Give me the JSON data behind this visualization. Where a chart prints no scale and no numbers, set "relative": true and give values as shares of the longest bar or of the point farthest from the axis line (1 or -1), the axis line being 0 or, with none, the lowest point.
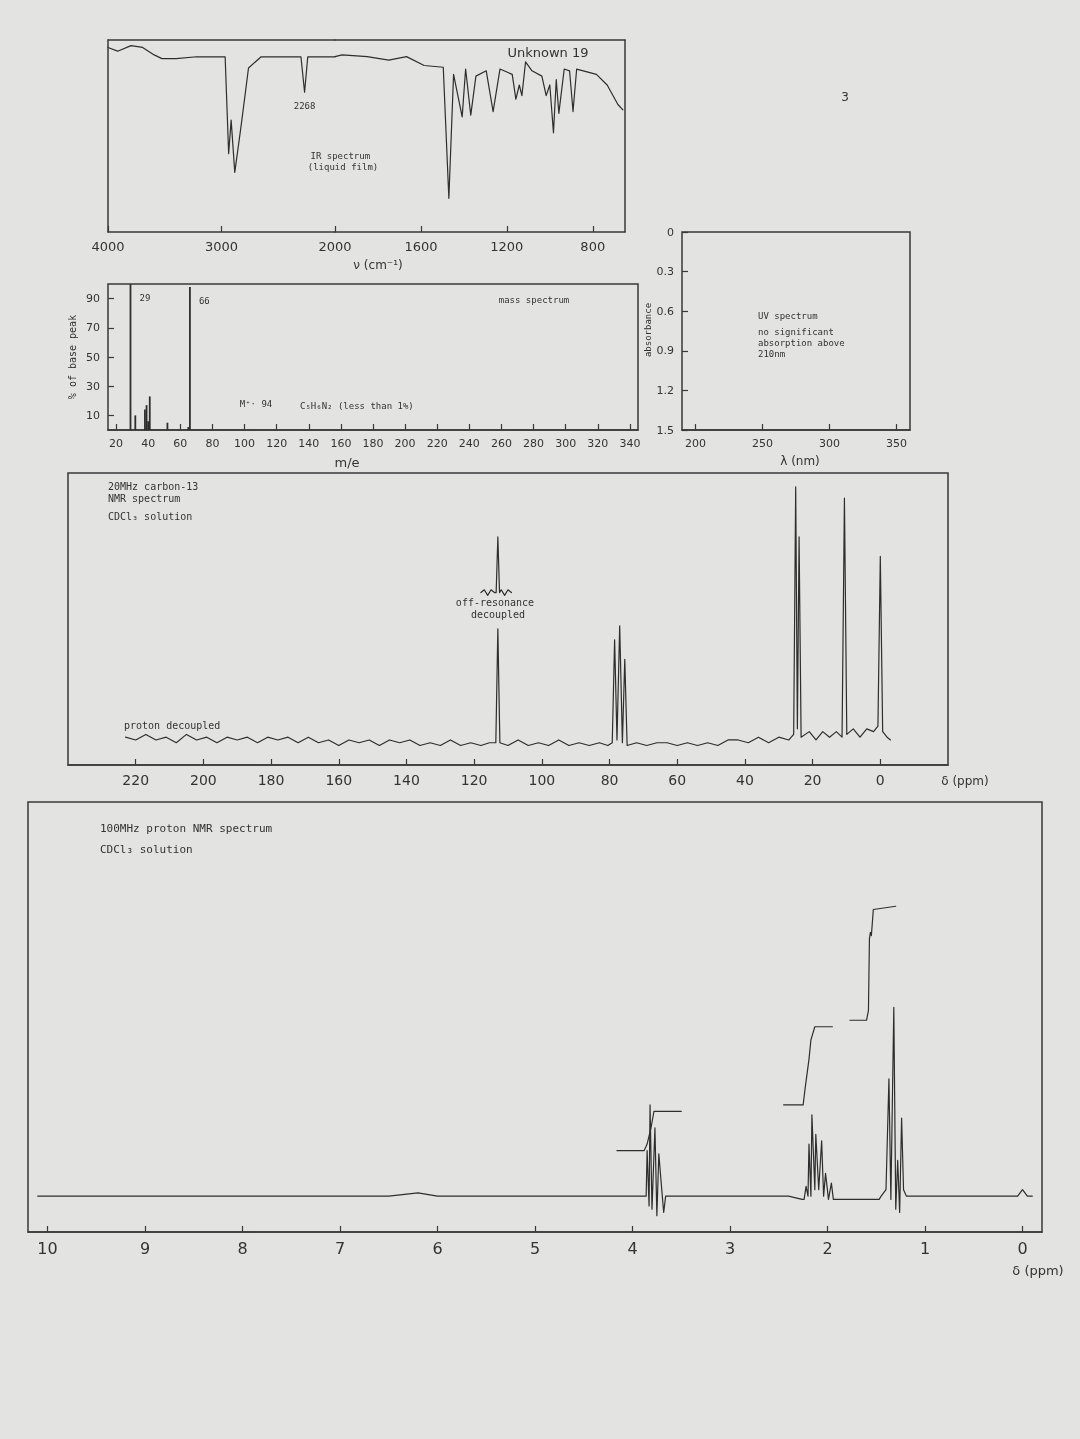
{
  "chart_data": [
    {
      "type": "line",
      "relative": true,
      "color": "#2e2e2e",
      "x": [
        4000,
        3915,
        3797,
        3695,
        3593,
        3525,
        3400,
        3220,
        2968,
        2937,
        2915,
        2883,
        2825,
        2762,
        2651,
        2500,
        2300,
        2268,
        2240,
        2100,
        2000
      ],
      "values": [
        0.99,
        0.97,
        1.0,
        0.99,
        0.95,
        0.93,
        0.93,
        0.94,
        0.94,
        0.42,
        0.6,
        0.32,
        0.58,
        0.88,
        0.94,
        0.94,
        0.94,
        0.75,
        0.94,
        0.94,
        0.94
      ],
      "xlim": [
        4000,
        2000
      ],
      "xticks": [
        4000,
        3000,
        2000
      ],
      "annotations": [
        {
          "text": "2268",
          "x": 2268,
          "y": 0.75
        },
        "IR spectrum (liquid film)"
      ]
    },
    {
      "type": "line",
      "relative": true,
      "color": "#2e2e2e",
      "title": "Unknown 19",
      "xlabel": "ν (cm⁻¹)",
      "x": [
        2000,
        1967,
        1850,
        1750,
        1667,
        1585,
        1496,
        1470,
        1448,
        1408,
        1392,
        1368,
        1344,
        1296,
        1264,
        1232,
        1175,
        1158,
        1142,
        1130,
        1113,
        1083,
        1037,
        1017,
        1000,
        983,
        970,
        958,
        933,
        908,
        892,
        875,
        783,
        733,
        683,
        660
      ],
      "values": [
        0.99,
        1.0,
        0.99,
        0.97,
        0.99,
        0.94,
        0.93,
        0.19,
        0.89,
        0.65,
        0.92,
        0.66,
        0.88,
        0.91,
        0.68,
        0.92,
        0.89,
        0.75,
        0.83,
        0.77,
        0.96,
        0.91,
        0.88,
        0.77,
        0.83,
        0.56,
        0.86,
        0.67,
        0.92,
        0.91,
        0.68,
        0.92,
        0.89,
        0.83,
        0.72,
        0.69
      ],
      "xlim": [
        2000,
        650
      ],
      "xticks": [
        1600,
        1200,
        800
      ]
    },
    {
      "type": "bar",
      "color": "#2e2e2e",
      "xlabel": "m/e",
      "ylabel": "% of base peak",
      "x": [
        29,
        32,
        38,
        39,
        40,
        41,
        52,
        65,
        66
      ],
      "values": [
        100,
        10,
        14,
        17,
        6,
        23,
        5,
        2,
        98
      ],
      "xlim": [
        15,
        345
      ],
      "xticks": [
        20,
        40,
        60,
        80,
        100,
        120,
        140,
        160,
        180,
        200,
        220,
        240,
        260,
        280,
        300,
        320,
        340
      ],
      "ylim": [
        0,
        100
      ],
      "yticks": [
        10,
        30,
        50,
        70,
        90
      ],
      "annotations": [
        {
          "text": "29",
          "x": 29,
          "y": 100
        },
        {
          "text": "66",
          "x": 66,
          "y": 98
        },
        "M⁺· 94",
        "C₅H₆N₂ (less than 1%)",
        "mass spectrum"
      ]
    },
    {
      "type": "line",
      "xlabel": "λ (nm)",
      "ylabel": "absorbance",
      "xlim": [
        190,
        360
      ],
      "xticks": [
        200,
        250,
        300,
        350
      ],
      "ylim": [
        1.5,
        0
      ],
      "yticks": [
        0,
        0.3,
        0.6,
        0.9,
        1.2,
        1.5
      ],
      "annotations": [
        "UV spectrum",
        "no significant absorption above 210nm",
        "3"
      ]
    },
    {
      "type": "line",
      "relative": true,
      "title": "20MHz carbon-13 NMR spectrum",
      "subtitle": "CDCl₃ solution",
      "xlabel": "δ (ppm)",
      "xlim": [
        240,
        -20
      ],
      "xticks": [
        220,
        200,
        180,
        160,
        140,
        120,
        100,
        80,
        60,
        40,
        20,
        0
      ],
      "annotations": [
        "off-resonance decoupled",
        "proton decoupled"
      ],
      "series": [
        {
          "color": "#2e2e2e",
          "x": [
            223,
            220,
            217,
            214,
            211,
            208,
            205,
            202,
            199,
            196,
            193,
            190,
            187,
            184,
            181,
            178,
            175,
            172,
            169,
            166,
            163,
            160,
            157,
            154,
            151,
            148,
            145,
            142,
            139,
            136,
            133,
            130,
            127,
            124,
            121,
            118,
            115.5,
            113.6,
            113,
            112.4,
            110,
            107,
            104,
            101,
            98,
            95,
            92,
            89,
            86,
            83,
            80.5,
            79.2,
            78.5,
            77.8,
            77,
            76.2,
            75.5,
            74.8,
            72,
            69,
            66,
            63,
            60,
            57,
            54,
            51,
            48,
            45,
            42,
            39,
            36,
            33,
            30,
            27,
            25.6,
            25,
            24.5,
            24,
            23.4,
            21,
            19,
            17,
            15,
            13,
            11.3,
            10.6,
            9.9,
            8,
            6,
            4,
            2,
            0.7,
            0,
            -0.7,
            -2,
            -3
          ],
          "values": [
            0.1,
            0.09,
            0.11,
            0.09,
            0.1,
            0.08,
            0.11,
            0.09,
            0.1,
            0.08,
            0.1,
            0.09,
            0.1,
            0.08,
            0.1,
            0.09,
            0.1,
            0.08,
            0.1,
            0.08,
            0.09,
            0.07,
            0.09,
            0.08,
            0.09,
            0.07,
            0.09,
            0.08,
            0.09,
            0.07,
            0.08,
            0.07,
            0.09,
            0.07,
            0.08,
            0.07,
            0.08,
            0.08,
            0.49,
            0.08,
            0.07,
            0.09,
            0.07,
            0.08,
            0.07,
            0.09,
            0.07,
            0.08,
            0.07,
            0.08,
            0.07,
            0.08,
            0.45,
            0.09,
            0.5,
            0.08,
            0.38,
            0.07,
            0.08,
            0.07,
            0.08,
            0.08,
            0.07,
            0.08,
            0.07,
            0.08,
            0.07,
            0.09,
            0.09,
            0.08,
            0.1,
            0.08,
            0.1,
            0.09,
            0.11,
            1.0,
            0.13,
            0.82,
            0.1,
            0.12,
            0.09,
            0.12,
            0.1,
            0.12,
            0.1,
            0.96,
            0.11,
            0.13,
            0.1,
            0.13,
            0.12,
            0.14,
            0.75,
            0.12,
            0.1,
            0.09
          ]
        },
        {
          "color": "#2e2e2e",
          "x": [
            118,
            117,
            116,
            115,
            114,
            113.5,
            113,
            112.5,
            112,
            111,
            110,
            109
          ],
          "values": [
            0.62,
            0.63,
            0.61,
            0.63,
            0.62,
            0.62,
            0.82,
            0.62,
            0.63,
            0.61,
            0.63,
            0.62
          ]
        }
      ]
    },
    {
      "type": "line",
      "relative": true,
      "title": "100MHz proton NMR spectrum",
      "subtitle": "CDCl₃ solution",
      "xlabel": "δ (ppm)",
      "xlim": [
        10.2,
        -0.2
      ],
      "xticks": [
        10,
        9,
        8,
        7,
        6,
        5,
        4,
        3,
        2,
        1,
        0
      ],
      "series": [
        {
          "color": "#2e2e2e",
          "x": [
            10.1,
            9.5,
            9,
            8.5,
            8,
            7.5,
            7,
            6.5,
            6.2,
            6,
            5.5,
            5,
            4.5,
            4.1,
            3.9,
            3.86,
            3.85,
            3.83,
            3.82,
            3.8,
            3.77,
            3.75,
            3.73,
            3.7,
            3.68,
            3.66,
            3.3,
            2.8,
            2.4,
            2.26,
            2.24,
            2.22,
            2.2,
            2.19,
            2.17,
            2.16,
            2.13,
            2.12,
            2.09,
            2.06,
            2.04,
            2.02,
            1.99,
            1.96,
            1.94,
            1.8,
            1.6,
            1.47,
            1.45,
            1.4,
            1.37,
            1.35,
            1.32,
            1.3,
            1.28,
            1.26,
            1.24,
            1.22,
            1.19,
            1,
            0.5,
            0.05,
            0,
            -0.05,
            -0.1
          ],
          "values": [
            0.11,
            0.11,
            0.11,
            0.11,
            0.11,
            0.11,
            0.11,
            0.11,
            0.12,
            0.11,
            0.11,
            0.11,
            0.11,
            0.11,
            0.11,
            0.11,
            0.25,
            0.08,
            0.39,
            0.07,
            0.32,
            0.05,
            0.24,
            0.13,
            0.06,
            0.11,
            0.11,
            0.11,
            0.11,
            0.1,
            0.1,
            0.14,
            0.11,
            0.27,
            0.11,
            0.36,
            0.13,
            0.3,
            0.13,
            0.28,
            0.11,
            0.18,
            0.1,
            0.15,
            0.1,
            0.1,
            0.1,
            0.1,
            0.11,
            0.13,
            0.47,
            0.1,
            0.69,
            0.07,
            0.22,
            0.06,
            0.35,
            0.13,
            0.11,
            0.11,
            0.11,
            0.11,
            0.13,
            0.11,
            0.11
          ]
        },
        {
          "color": "#2e2e2e",
          "x": [
            4.16,
            3.88,
            3.85,
            3.81,
            3.78,
            3.72,
            3.5,
            3.0,
            2.45,
            2.25,
            2.23,
            2.19,
            2.17,
            2.13,
            2.08,
            1.95,
            1.85,
            1.77,
            1.6,
            1.58,
            1.57,
            1.56,
            1.55,
            1.53,
            1.3
          ],
          "values": [
            0.25,
            0.25,
            0.27,
            0.32,
            0.37,
            0.37,
            0.37,
            null,
            0.39,
            0.39,
            0.44,
            0.53,
            0.59,
            0.63,
            0.63,
            0.63,
            null,
            0.65,
            0.65,
            0.68,
            0.9,
            0.92,
            0.91,
            0.99,
            1.0
          ]
        }
      ]
    }
  ]
}
